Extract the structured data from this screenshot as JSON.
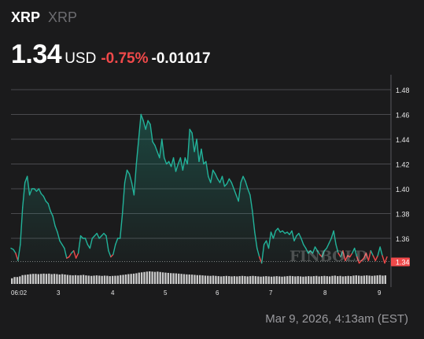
{
  "header": {
    "symbol": "XRP",
    "subtitle": "XRP",
    "price": "1.34",
    "currency": "USD",
    "change_pct": "-0.75%",
    "change_abs": "-0.01017"
  },
  "footer": {
    "timestamp": "Mar 9, 2026, 4:13am (EST)"
  },
  "watermark": "FINBOLD",
  "colors": {
    "up": "#22b39a",
    "down": "#f0494a",
    "background": "#1b1b1c",
    "grid": "#4a4a4e",
    "volume": "#d9d9d9"
  },
  "chart_data": {
    "type": "line",
    "ylim": [
      1.34,
      1.49
    ],
    "y_ticks": [
      "1.48",
      "1.46",
      "1.44",
      "1.42",
      "1.40",
      "1.38",
      "1.36"
    ],
    "x_ticks": [
      "06:02",
      "3",
      "4",
      "5",
      "6",
      "7",
      "8",
      "9"
    ],
    "last_price_label": "1.34",
    "reference_level": 1.3413,
    "grid": true,
    "series": [
      {
        "values": [
          1.352,
          1.351,
          1.348,
          1.342,
          1.355,
          1.385,
          1.405,
          1.41,
          1.395,
          1.4,
          1.4,
          1.398,
          1.4,
          1.396,
          1.394,
          1.39,
          1.388,
          1.382,
          1.378,
          1.37,
          1.365,
          1.358,
          1.355,
          1.352,
          1.344,
          1.345,
          1.348,
          1.35,
          1.344,
          1.348,
          1.362,
          1.36,
          1.36,
          1.355,
          1.352,
          1.36,
          1.362,
          1.364,
          1.36,
          1.362,
          1.364,
          1.362,
          1.35,
          1.345,
          1.347,
          1.355,
          1.36,
          1.36,
          1.38,
          1.405,
          1.415,
          1.412,
          1.405,
          1.395,
          1.42,
          1.44,
          1.46,
          1.455,
          1.448,
          1.455,
          1.452,
          1.438,
          1.435,
          1.43,
          1.425,
          1.44,
          1.425,
          1.42,
          1.422,
          1.418,
          1.425,
          1.414,
          1.42,
          1.425,
          1.415,
          1.425,
          1.42,
          1.448,
          1.445,
          1.43,
          1.44,
          1.422,
          1.432,
          1.42,
          1.422,
          1.41,
          1.405,
          1.415,
          1.412,
          1.408,
          1.405,
          1.41,
          1.402,
          1.404,
          1.408,
          1.405,
          1.4,
          1.395,
          1.39,
          1.405,
          1.41,
          1.406,
          1.4,
          1.395,
          1.382,
          1.365,
          1.352,
          1.345,
          1.34,
          1.355,
          1.358,
          1.352,
          1.365,
          1.36,
          1.366,
          1.368,
          1.365,
          1.366,
          1.364,
          1.365,
          1.363,
          1.366,
          1.358,
          1.362,
          1.364,
          1.36,
          1.355,
          1.352,
          1.348,
          1.35,
          1.348,
          1.353,
          1.35,
          1.347,
          1.345,
          1.35,
          1.352,
          1.356,
          1.36,
          1.366,
          1.355,
          1.348,
          1.345,
          1.35,
          1.342,
          1.346,
          1.345,
          1.348,
          1.352,
          1.345,
          1.34,
          1.342,
          1.344,
          1.348,
          1.342,
          1.35,
          1.346,
          1.342,
          1.346,
          1.353,
          1.346,
          1.34,
          1.345
        ]
      }
    ],
    "volume": [
      0.45,
      0.55,
      0.55,
      0.6,
      0.7,
      0.72,
      0.75,
      0.78,
      0.8,
      0.8,
      0.78,
      0.8,
      0.82,
      0.8,
      0.82,
      0.78,
      0.8,
      0.78,
      0.75,
      0.78,
      0.75,
      0.72,
      0.7,
      0.68,
      0.7,
      0.68,
      0.7,
      0.72,
      0.68,
      0.66,
      0.64,
      0.66,
      0.68,
      0.66,
      0.64,
      0.66,
      0.65,
      0.62,
      0.64,
      0.65,
      0.66,
      0.7,
      0.72,
      0.75,
      0.78,
      0.8,
      0.82,
      0.85,
      0.9,
      0.92,
      0.95,
      0.98,
      1.0,
      0.98,
      0.96,
      0.98,
      0.95,
      0.92,
      0.9,
      0.88,
      0.86,
      0.85,
      0.84,
      0.82,
      0.8,
      0.78,
      0.76,
      0.75,
      0.74,
      0.72,
      0.7,
      0.7,
      0.68,
      0.66,
      0.65,
      0.64,
      0.66,
      0.64,
      0.62,
      0.6,
      0.62,
      0.64,
      0.62,
      0.6,
      0.62,
      0.6,
      0.62,
      0.64,
      0.62,
      0.6,
      0.62,
      0.64,
      0.62,
      0.6,
      0.58,
      0.6,
      0.62,
      0.6,
      0.58,
      0.6,
      0.62,
      0.6,
      0.58,
      0.6,
      0.62,
      0.64,
      0.62,
      0.6,
      0.62,
      0.6,
      0.58,
      0.6,
      0.62,
      0.6,
      0.62,
      0.64,
      0.6,
      0.62,
      0.64,
      0.62,
      0.6,
      0.64,
      0.66,
      0.62,
      0.64,
      0.6,
      0.62,
      0.64,
      0.62,
      0.66,
      0.68,
      0.66,
      0.64,
      0.66,
      0.68,
      0.66,
      0.64,
      0.66,
      0.68,
      0.7,
      0.66,
      0.68
    ]
  }
}
